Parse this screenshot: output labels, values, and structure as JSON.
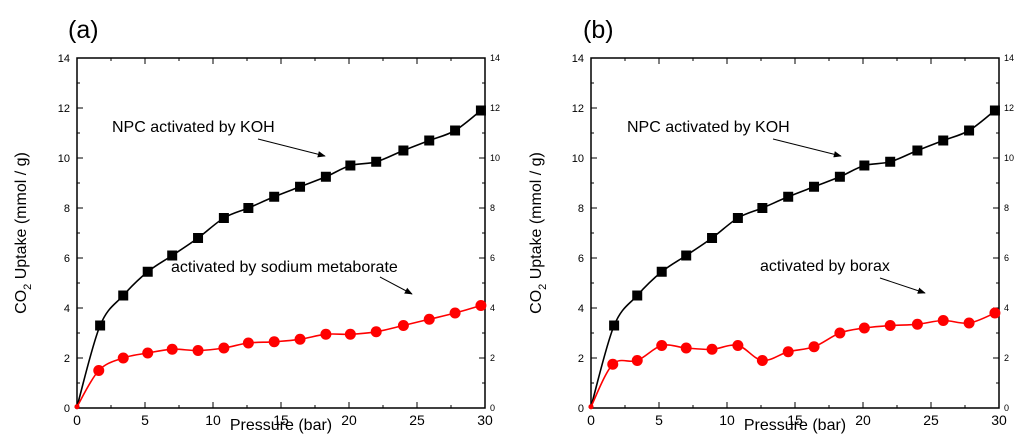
{
  "chart_data": [
    {
      "type": "line",
      "panel_label": "(a)",
      "xlabel": "Pressure (bar)",
      "ylabel": "CO2 Uptake (mmol / g)",
      "xlim": [
        0,
        30
      ],
      "ylim": [
        0,
        14
      ],
      "x_ticks": [
        0,
        5,
        10,
        15,
        20,
        25,
        30
      ],
      "y_ticks": [
        0,
        2,
        4,
        6,
        8,
        10,
        12,
        14
      ],
      "grid": false,
      "series": [
        {
          "name": "NPC activated by KOH",
          "color": "#000000",
          "marker": "square",
          "x": [
            0,
            1.7,
            3.4,
            5.2,
            7.0,
            8.9,
            10.8,
            12.6,
            14.5,
            16.4,
            18.3,
            20.1,
            22.0,
            24.0,
            25.9,
            27.8,
            29.7
          ],
          "y": [
            0.05,
            3.3,
            4.5,
            5.45,
            6.1,
            6.8,
            7.6,
            8.0,
            8.45,
            8.85,
            9.25,
            9.7,
            9.85,
            10.3,
            10.7,
            11.1,
            11.9
          ]
        },
        {
          "name": "activated by sodium metaborate",
          "color": "#ff0000",
          "marker": "circle",
          "x": [
            0,
            1.6,
            3.4,
            5.2,
            7.0,
            8.9,
            10.8,
            12.6,
            14.5,
            16.4,
            18.3,
            20.1,
            22.0,
            24.0,
            25.9,
            27.8,
            29.7
          ],
          "y": [
            0.05,
            1.5,
            2.0,
            2.2,
            2.35,
            2.3,
            2.4,
            2.6,
            2.65,
            2.75,
            2.95,
            2.95,
            3.05,
            3.3,
            3.55,
            3.8,
            4.1
          ]
        }
      ],
      "annotations": [
        {
          "text": "NPC activated by KOH",
          "target_series": 0
        },
        {
          "text": "activated by sodium metaborate",
          "target_series": 1
        }
      ]
    },
    {
      "type": "line",
      "panel_label": "(b)",
      "xlabel": "Pressure (bar)",
      "ylabel": "CO2 Uptake (mmol / g)",
      "xlim": [
        0,
        30
      ],
      "ylim": [
        0,
        14
      ],
      "x_ticks": [
        0,
        5,
        10,
        15,
        20,
        25,
        30
      ],
      "y_ticks": [
        0,
        2,
        4,
        6,
        8,
        10,
        12,
        14
      ],
      "grid": false,
      "series": [
        {
          "name": "NPC activated by KOH",
          "color": "#000000",
          "marker": "square",
          "x": [
            0,
            1.7,
            3.4,
            5.2,
            7.0,
            8.9,
            10.8,
            12.6,
            14.5,
            16.4,
            18.3,
            20.1,
            22.0,
            24.0,
            25.9,
            27.8,
            29.7
          ],
          "y": [
            0.05,
            3.3,
            4.5,
            5.45,
            6.1,
            6.8,
            7.6,
            8.0,
            8.45,
            8.85,
            9.25,
            9.7,
            9.85,
            10.3,
            10.7,
            11.1,
            11.9
          ]
        },
        {
          "name": "activated by borax",
          "color": "#ff0000",
          "marker": "circle",
          "x": [
            0,
            1.6,
            3.4,
            5.2,
            7.0,
            8.9,
            10.8,
            12.6,
            14.5,
            16.4,
            18.3,
            20.1,
            22.0,
            24.0,
            25.9,
            27.8,
            29.7
          ],
          "y": [
            0.05,
            1.75,
            1.9,
            2.5,
            2.4,
            2.35,
            2.5,
            1.9,
            2.25,
            2.45,
            3.0,
            3.2,
            3.3,
            3.35,
            3.5,
            3.4,
            3.8
          ]
        }
      ],
      "annotations": [
        {
          "text": "NPC activated by KOH",
          "target_series": 0
        },
        {
          "text": "activated by borax",
          "target_series": 1
        }
      ]
    }
  ]
}
